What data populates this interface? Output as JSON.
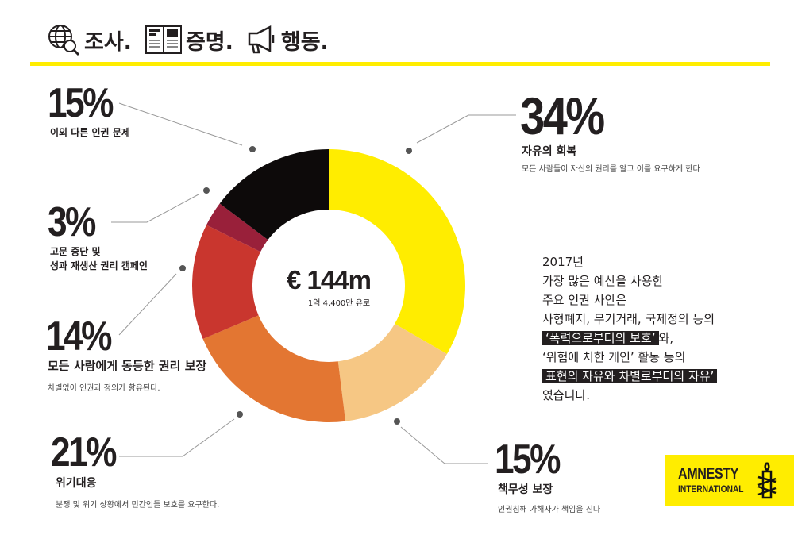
{
  "header": {
    "items": [
      {
        "icon": "globe-search-icon",
        "label": "조사."
      },
      {
        "icon": "newspaper-icon",
        "label": "증명."
      },
      {
        "icon": "megaphone-icon",
        "label": "행동."
      }
    ],
    "rule_color": "#ffed00"
  },
  "center": {
    "amount": "€ 144m",
    "sub": "1억 4,400만 유로"
  },
  "chart_data": {
    "type": "donut",
    "direction": "clockwise from top",
    "slices": [
      {
        "value": 34,
        "pct_label": "34%",
        "label": "자유의 회복",
        "desc": "모든 사람들이 자신의 권리를 알고 이를 요구하게 한다",
        "color": "#ffed00"
      },
      {
        "value": 15,
        "pct_label": "15%",
        "label": "책무성 보장",
        "desc": "인권침해 가해자가 책임을 진다",
        "color": "#f6c784"
      },
      {
        "value": 21,
        "pct_label": "21%",
        "label": "위기대응",
        "desc": "분쟁 및 위기 상황에서 민간인들 보호를 요구한다.",
        "color": "#e37632"
      },
      {
        "value": 14,
        "pct_label": "14%",
        "label": "모든 사람에게 동등한 권리 보장",
        "desc": "차별없이 인권과 정의가 향유된다.",
        "color": "#c9362e"
      },
      {
        "value": 3,
        "pct_label": "3%",
        "label": "고문 중단 및",
        "label2": "성과 재생산 권리 캠페인",
        "color": "#99203a"
      },
      {
        "value": 15,
        "pct_label": "15%",
        "label": "이외 다른 인권 문제",
        "color": "#0d0a0a"
      }
    ]
  },
  "summary": {
    "lines": [
      "2017년",
      "가장 많은 예산을 사용한",
      "주요 인권 사안은",
      "사형폐지, 무기거래, 국제정의 등의"
    ],
    "hl1": "‘폭력으로부터의 보호’",
    "hl1_after": "와,",
    "line6": "‘위험에 처한 개인’ 활동 등의",
    "hl2": "표현의 자유와 차별로부터의 자유’",
    "last": "였습니다."
  },
  "logo": {
    "line1": "AMNESTY",
    "line2": "INTERNATIONAL",
    "icon": "candle-barbed-wire-icon",
    "color": "#ffed00"
  }
}
